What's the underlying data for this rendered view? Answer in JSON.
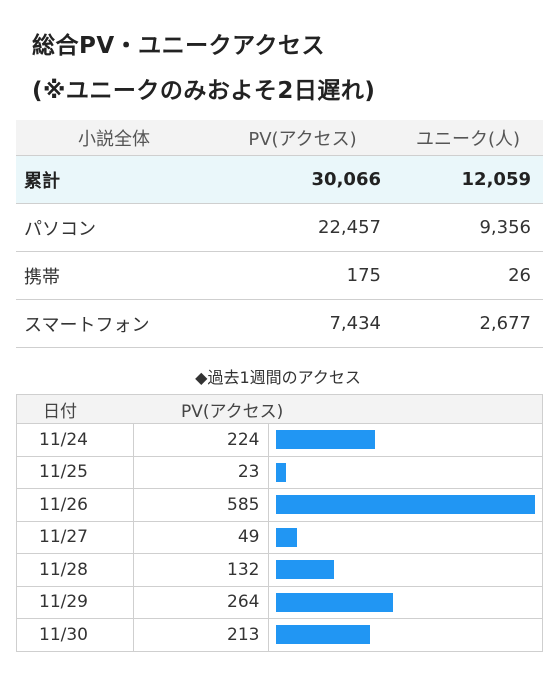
{
  "title": {
    "line1": "総合PV・ユニークアクセス",
    "line2": "(※ユニークのみおよそ2日遅れ)"
  },
  "summary": {
    "headers": [
      "小説全体",
      "PV(アクセス)",
      "ユニーク(人)"
    ],
    "rows": [
      {
        "label": "累計",
        "pv": "30,066",
        "unique": "12,059"
      },
      {
        "label": "パソコン",
        "pv": "22,457",
        "unique": "9,356"
      },
      {
        "label": "携帯",
        "pv": "175",
        "unique": "26"
      },
      {
        "label": "スマートフォン",
        "pv": "7,434",
        "unique": "2,677"
      }
    ]
  },
  "weekly": {
    "heading": "◆過去1週間のアクセス",
    "headers": [
      "日付",
      "PV(アクセス)"
    ],
    "rows": [
      {
        "date": "11/24",
        "pv": "224"
      },
      {
        "date": "11/25",
        "pv": "23"
      },
      {
        "date": "11/26",
        "pv": "585"
      },
      {
        "date": "11/27",
        "pv": "49"
      },
      {
        "date": "11/28",
        "pv": "132"
      },
      {
        "date": "11/29",
        "pv": "264"
      },
      {
        "date": "11/30",
        "pv": "213"
      }
    ],
    "bar_color": "#2196f3",
    "bar_max": 585
  },
  "colors": {
    "total_row_bg": "#eaf7fa",
    "header_bg": "#f3f3f3"
  }
}
